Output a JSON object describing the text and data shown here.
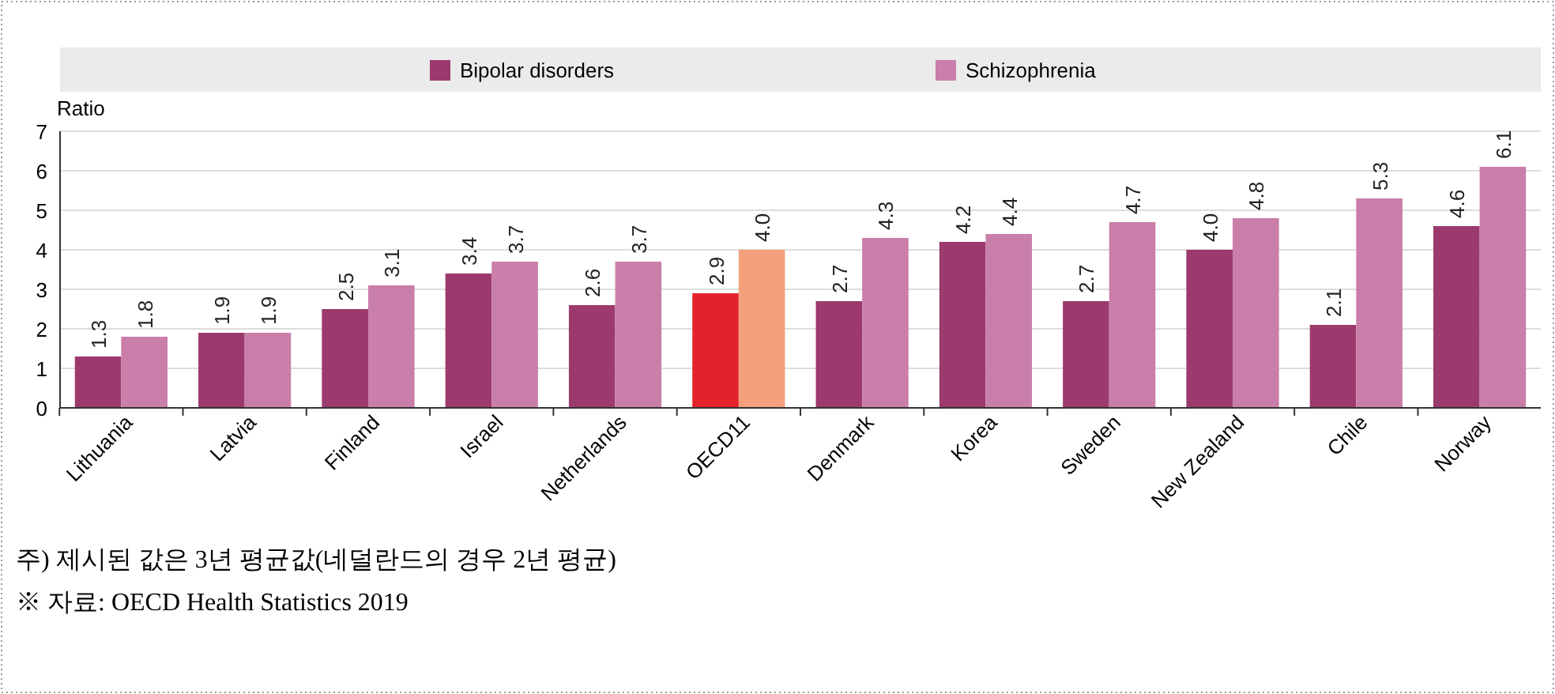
{
  "chart_data": {
    "type": "bar",
    "ylabel": "Ratio",
    "categories": [
      "Lithuania",
      "Latvia",
      "Finland",
      "Israel",
      "Netherlands",
      "OECD11",
      "Denmark",
      "Korea",
      "Sweden",
      "New Zealand",
      "Chile",
      "Norway"
    ],
    "series": [
      {
        "name": "Bipolar disorders",
        "color": "#9c3a6e",
        "colors": [
          "#9c3a6e",
          "#9c3a6e",
          "#9c3a6e",
          "#9c3a6e",
          "#9c3a6e",
          "#e3222b",
          "#9c3a6e",
          "#9c3a6e",
          "#9c3a6e",
          "#9c3a6e",
          "#9c3a6e",
          "#9c3a6e"
        ],
        "values": [
          1.3,
          1.9,
          2.5,
          3.4,
          2.6,
          2.9,
          2.7,
          4.2,
          2.7,
          4.0,
          2.1,
          4.6
        ],
        "value_labels": [
          "1.3",
          "1.9",
          "2.5",
          "3.4",
          "2.6",
          "2.9",
          "2.7",
          "4.2",
          "2.7",
          "4.0",
          "2.1",
          "4.6"
        ]
      },
      {
        "name": "Schizophrenia",
        "color": "#c97fa9",
        "colors": [
          "#c97fa9",
          "#c97fa9",
          "#c97fa9",
          "#c97fa9",
          "#c97fa9",
          "#f5a07c",
          "#c97fa9",
          "#c97fa9",
          "#c97fa9",
          "#c97fa9",
          "#c97fa9",
          "#c97fa9"
        ],
        "values": [
          1.8,
          1.9,
          3.1,
          3.7,
          3.7,
          4.0,
          4.3,
          4.4,
          4.7,
          4.8,
          5.3,
          6.1
        ],
        "value_labels": [
          "1.8",
          "1.9",
          "3.1",
          "3.7",
          "3.7",
          "4.0",
          "4.3",
          "4.4",
          "4.7",
          "4.8",
          "5.3",
          "6.1"
        ]
      }
    ],
    "ylim": [
      0,
      7
    ],
    "yticks": [
      0,
      1,
      2,
      3,
      4,
      5,
      6,
      7
    ],
    "grid": "y",
    "legend": "top",
    "annotations": [
      "주) 제시된 값은 3년 평균값(네덜란드의 경우 2년 평균)",
      "※ 자료: OECD Health Statistics 2019"
    ]
  }
}
